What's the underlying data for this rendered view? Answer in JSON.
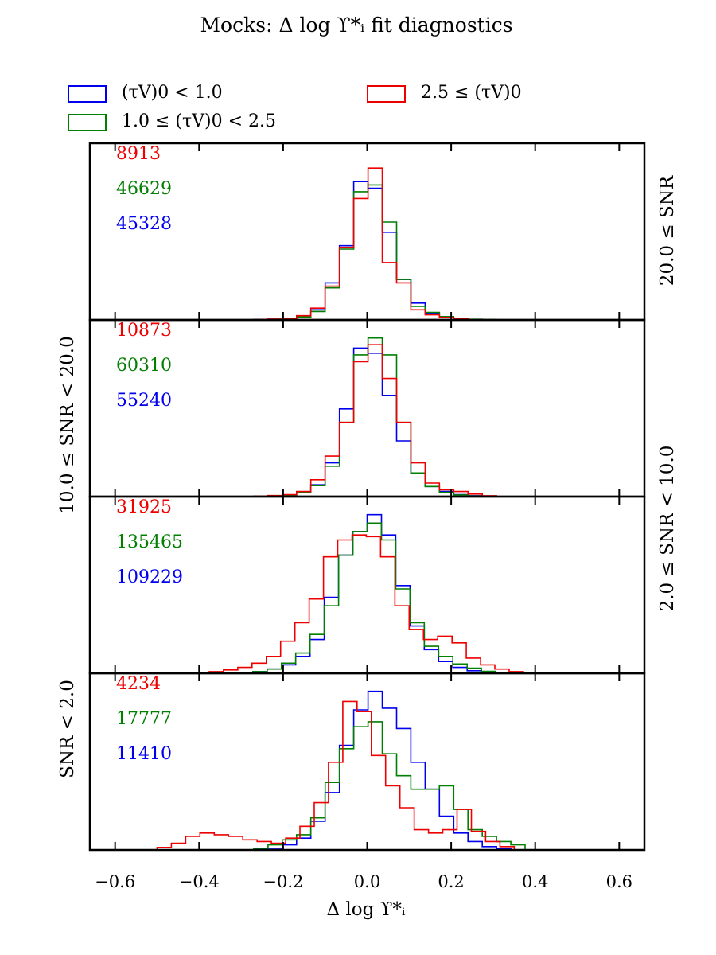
{
  "chart_data": {
    "type": "histogram",
    "title": "Mocks: Δ log ϒ*ᵢ fit diagnostics",
    "xlabel": "Δ log ϒ*ᵢ",
    "xlim": [
      -0.66,
      0.66
    ],
    "xticks": [
      -0.6,
      -0.4,
      -0.2,
      0.0,
      0.2,
      0.4,
      0.6
    ],
    "xtick_labels": [
      "−0.6",
      "−0.4",
      "−0.2",
      "0.0",
      "0.2",
      "0.4",
      "0.6"
    ],
    "bin_width": 0.034,
    "colors": {
      "low": "#0000ee",
      "mid": "#007f00",
      "high": "#ee0000"
    },
    "legend": [
      {
        "key": "low",
        "label": "(τV)0 < 1.0"
      },
      {
        "key": "mid",
        "label": "1.0 ≤ (τV)0 < 2.5"
      },
      {
        "key": "high",
        "label": "2.5 ≤ (τV)0"
      }
    ],
    "panels": [
      {
        "label": "20.0 ≤ SNR",
        "label_side": "right",
        "ylim": [
          0,
          1.0
        ],
        "counts": {
          "high": "8913",
          "mid": "46629",
          "low": "45328"
        },
        "series": {
          "low": {
            "x0": -0.27,
            "values": [
              0.002,
              0.004,
              0.008,
              0.02,
              0.06,
              0.22,
              0.44,
              0.82,
              0.78,
              0.52,
              0.24,
              0.1,
              0.04,
              0.015,
              0.006,
              0.002
            ]
          },
          "mid": {
            "x0": -0.27,
            "values": [
              0.002,
              0.003,
              0.007,
              0.018,
              0.05,
              0.19,
              0.42,
              0.76,
              0.8,
              0.58,
              0.24,
              0.08,
              0.045,
              0.02,
              0.01,
              0.004,
              0.002
            ]
          },
          "high": {
            "x0": -0.27,
            "values": [
              0.003,
              0.005,
              0.01,
              0.025,
              0.07,
              0.2,
              0.43,
              0.72,
              0.9,
              0.34,
              0.22,
              0.06,
              0.03,
              0.015,
              0.006
            ]
          }
        }
      },
      {
        "label": "10.0 ≤ SNR < 20.0",
        "label_side": "left",
        "ylim": [
          0,
          1.0
        ],
        "counts": {
          "high": "10873",
          "mid": "60310",
          "low": "55240"
        },
        "series": {
          "low": {
            "x0": -0.27,
            "values": [
              0.002,
              0.005,
              0.01,
              0.025,
              0.07,
              0.2,
              0.52,
              0.88,
              0.85,
              0.6,
              0.33,
              0.14,
              0.06,
              0.03,
              0.012,
              0.005
            ]
          },
          "mid": {
            "x0": -0.27,
            "values": [
              0.002,
              0.004,
              0.009,
              0.025,
              0.065,
              0.18,
              0.44,
              0.84,
              0.94,
              0.84,
              0.44,
              0.14,
              0.06,
              0.025,
              0.01,
              0.004
            ]
          },
          "high": {
            "x0": -0.27,
            "values": [
              0.003,
              0.006,
              0.012,
              0.03,
              0.1,
              0.24,
              0.44,
              0.8,
              0.9,
              0.7,
              0.44,
              0.2,
              0.08,
              0.04,
              0.03,
              0.015,
              0.005
            ]
          }
        }
      },
      {
        "label": "2.0 ≤ SNR < 10.0",
        "label_side": "right",
        "ylim": [
          0,
          1.0
        ],
        "counts": {
          "high": "31925",
          "mid": "135465",
          "low": "109229"
        },
        "series": {
          "low": {
            "x0": -0.34,
            "values": [
              0.002,
              0.005,
              0.01,
              0.025,
              0.05,
              0.1,
              0.2,
              0.45,
              0.7,
              0.84,
              0.94,
              0.82,
              0.52,
              0.28,
              0.14,
              0.07,
              0.035,
              0.015,
              0.006
            ]
          },
          "mid": {
            "x0": -0.34,
            "values": [
              0.002,
              0.005,
              0.01,
              0.025,
              0.06,
              0.12,
              0.23,
              0.4,
              0.7,
              0.84,
              0.89,
              0.79,
              0.5,
              0.3,
              0.16,
              0.1,
              0.055,
              0.03,
              0.012,
              0.005
            ]
          },
          "high": {
            "x0": -0.41,
            "values": [
              0.005,
              0.01,
              0.02,
              0.035,
              0.06,
              0.1,
              0.19,
              0.3,
              0.44,
              0.69,
              0.79,
              0.82,
              0.81,
              0.69,
              0.4,
              0.26,
              0.2,
              0.22,
              0.18,
              0.09,
              0.05,
              0.025,
              0.01
            ]
          }
        }
      },
      {
        "label": "SNR < 2.0",
        "label_side": "left",
        "ylim": [
          0,
          1.0
        ],
        "counts": {
          "high": "4234",
          "mid": "17777",
          "low": "11410"
        },
        "series": {
          "low": {
            "x0": -0.27,
            "values": [
              0.005,
              0.01,
              0.03,
              0.07,
              0.17,
              0.34,
              0.62,
              0.83,
              0.94,
              0.84,
              0.72,
              0.52,
              0.36,
              0.2,
              0.1,
              0.05,
              0.02,
              0.008
            ]
          },
          "mid": {
            "x0": -0.27,
            "values": [
              0.01,
              0.03,
              0.06,
              0.09,
              0.19,
              0.4,
              0.6,
              0.73,
              0.76,
              0.57,
              0.44,
              0.36,
              0.36,
              0.38,
              0.24,
              0.12,
              0.08,
              0.05,
              0.03
            ]
          },
          "high": {
            "x0": -0.5,
            "values": [
              0.015,
              0.04,
              0.08,
              0.1,
              0.09,
              0.08,
              0.06,
              0.05,
              0.04,
              0.07,
              0.14,
              0.28,
              0.52,
              0.88,
              0.82,
              0.56,
              0.38,
              0.25,
              0.12,
              0.1,
              0.12,
              0.24,
              0.11,
              0.05,
              0.02
            ]
          }
        }
      }
    ]
  }
}
